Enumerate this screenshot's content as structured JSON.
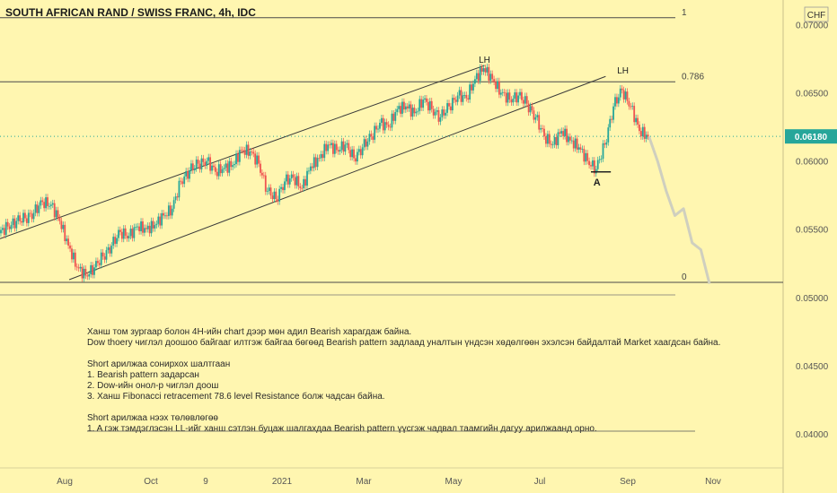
{
  "chart_data": {
    "type": "line",
    "title": "SOUTH AFRICAN RAND / SWISS FRANC, 4h, IDC",
    "currency_label": "CHF",
    "current_price": "0.06180",
    "y_ticks": [
      "0.07000",
      "0.06500",
      "0.06000",
      "0.05500",
      "0.05000",
      "0.04500",
      "0.04000"
    ],
    "ylim": [
      0.0375,
      0.0718
    ],
    "x_ticks": [
      "Aug",
      "Oct",
      "9",
      "2021",
      "Mar",
      "May",
      "Jul",
      "Sep",
      "Nov"
    ],
    "grid": false,
    "fib_levels": [
      {
        "label": "1",
        "value": 0.0705
      },
      {
        "label": "0.786",
        "value": 0.0658
      },
      {
        "label": "0",
        "value": 0.0511
      }
    ],
    "price_series": [
      {
        "x": 0,
        "y": 0.0547
      },
      {
        "x": 1,
        "y": 0.0552
      },
      {
        "x": 2,
        "y": 0.0556
      },
      {
        "x": 3,
        "y": 0.0558
      },
      {
        "x": 4,
        "y": 0.0562
      },
      {
        "x": 5,
        "y": 0.057
      },
      {
        "x": 6,
        "y": 0.0568
      },
      {
        "x": 7,
        "y": 0.0556
      },
      {
        "x": 8,
        "y": 0.0538
      },
      {
        "x": 9,
        "y": 0.0522
      },
      {
        "x": 10,
        "y": 0.0516
      },
      {
        "x": 11,
        "y": 0.0522
      },
      {
        "x": 12,
        "y": 0.053
      },
      {
        "x": 13,
        "y": 0.0538
      },
      {
        "x": 14,
        "y": 0.0548
      },
      {
        "x": 15,
        "y": 0.0545
      },
      {
        "x": 16,
        "y": 0.0552
      },
      {
        "x": 17,
        "y": 0.055
      },
      {
        "x": 18,
        "y": 0.0553
      },
      {
        "x": 19,
        "y": 0.056
      },
      {
        "x": 20,
        "y": 0.0565
      },
      {
        "x": 21,
        "y": 0.0585
      },
      {
        "x": 22,
        "y": 0.0593
      },
      {
        "x": 23,
        "y": 0.0598
      },
      {
        "x": 24,
        "y": 0.06
      },
      {
        "x": 25,
        "y": 0.0592
      },
      {
        "x": 26,
        "y": 0.0595
      },
      {
        "x": 27,
        "y": 0.0597
      },
      {
        "x": 28,
        "y": 0.0608
      },
      {
        "x": 29,
        "y": 0.0607
      },
      {
        "x": 30,
        "y": 0.0598
      },
      {
        "x": 31,
        "y": 0.0578
      },
      {
        "x": 32,
        "y": 0.0572
      },
      {
        "x": 33,
        "y": 0.0585
      },
      {
        "x": 34,
        "y": 0.0588
      },
      {
        "x": 35,
        "y": 0.058
      },
      {
        "x": 36,
        "y": 0.0596
      },
      {
        "x": 37,
        "y": 0.0602
      },
      {
        "x": 38,
        "y": 0.0612
      },
      {
        "x": 39,
        "y": 0.0608
      },
      {
        "x": 40,
        "y": 0.0612
      },
      {
        "x": 41,
        "y": 0.0602
      },
      {
        "x": 42,
        "y": 0.061
      },
      {
        "x": 43,
        "y": 0.0618
      },
      {
        "x": 44,
        "y": 0.0628
      },
      {
        "x": 45,
        "y": 0.0625
      },
      {
        "x": 46,
        "y": 0.0638
      },
      {
        "x": 47,
        "y": 0.064
      },
      {
        "x": 48,
        "y": 0.0635
      },
      {
        "x": 49,
        "y": 0.0645
      },
      {
        "x": 50,
        "y": 0.0638
      },
      {
        "x": 51,
        "y": 0.0632
      },
      {
        "x": 52,
        "y": 0.064
      },
      {
        "x": 53,
        "y": 0.0648
      },
      {
        "x": 54,
        "y": 0.0646
      },
      {
        "x": 55,
        "y": 0.066
      },
      {
        "x": 56,
        "y": 0.0668
      },
      {
        "x": 57,
        "y": 0.066
      },
      {
        "x": 58,
        "y": 0.065
      },
      {
        "x": 59,
        "y": 0.0645
      },
      {
        "x": 60,
        "y": 0.0648
      },
      {
        "x": 61,
        "y": 0.0642
      },
      {
        "x": 62,
        "y": 0.0632
      },
      {
        "x": 63,
        "y": 0.0618
      },
      {
        "x": 64,
        "y": 0.0612
      },
      {
        "x": 65,
        "y": 0.0622
      },
      {
        "x": 66,
        "y": 0.0615
      },
      {
        "x": 67,
        "y": 0.061
      },
      {
        "x": 68,
        "y": 0.06
      },
      {
        "x": 69,
        "y": 0.0594
      },
      {
        "x": 70,
        "y": 0.0612
      },
      {
        "x": 71,
        "y": 0.064
      },
      {
        "x": 72,
        "y": 0.0652
      },
      {
        "x": 73,
        "y": 0.064
      },
      {
        "x": 74,
        "y": 0.0622
      },
      {
        "x": 75,
        "y": 0.0618
      }
    ],
    "projection": [
      {
        "x": 75,
        "y": 0.0618
      },
      {
        "x": 76,
        "y": 0.06
      },
      {
        "x": 77,
        "y": 0.0578
      },
      {
        "x": 78,
        "y": 0.056
      },
      {
        "x": 79,
        "y": 0.0565
      },
      {
        "x": 80,
        "y": 0.054
      },
      {
        "x": 81,
        "y": 0.0535
      },
      {
        "x": 82,
        "y": 0.051
      }
    ],
    "channel": {
      "upper": [
        {
          "x": 0,
          "y": 0.0543
        },
        {
          "x": 56,
          "y": 0.067
        }
      ],
      "lower": [
        {
          "x": 8,
          "y": 0.0513
        },
        {
          "x": 70,
          "y": 0.0662
        }
      ]
    },
    "annotations": [
      {
        "text": "LH",
        "x": 56,
        "y": 0.0672
      },
      {
        "text": "LH",
        "x": 72,
        "y": 0.0664
      },
      {
        "text": "A",
        "x": 69,
        "y": 0.0582
      }
    ]
  },
  "notes": {
    "lines": [
      "Ханш том зургаар болон 4H-ийн chart дээр мөн адил Bearish харагдаж байна.",
      "Dow thoery чиглэл доошоо байгааг илтгэж байгаа бөгөөд Bearish pattern задлаад уналтын үндсэн хөдөлгөөн эхэлсэн байдалтай Market хаагдсан байна.",
      "",
      "Short арилжаа сонирхох шалтгаан",
      "1. Bearish pattern задарсан",
      "2. Dow-ийн онол-р чиглэл доош",
      "3. Ханш Fibonacci retracement 78.6 level Resistance болж чадсан байна.",
      "",
      "Short арилжаа нээх төлөвлөгөө",
      "1. A гэж тэмдэглэсэн LL-ийг ханш сэтлэн буцаж шалгахдаа Bearish pattern үүсгэж чадвал таамгийн дагуу арилжаанд орно."
    ]
  }
}
